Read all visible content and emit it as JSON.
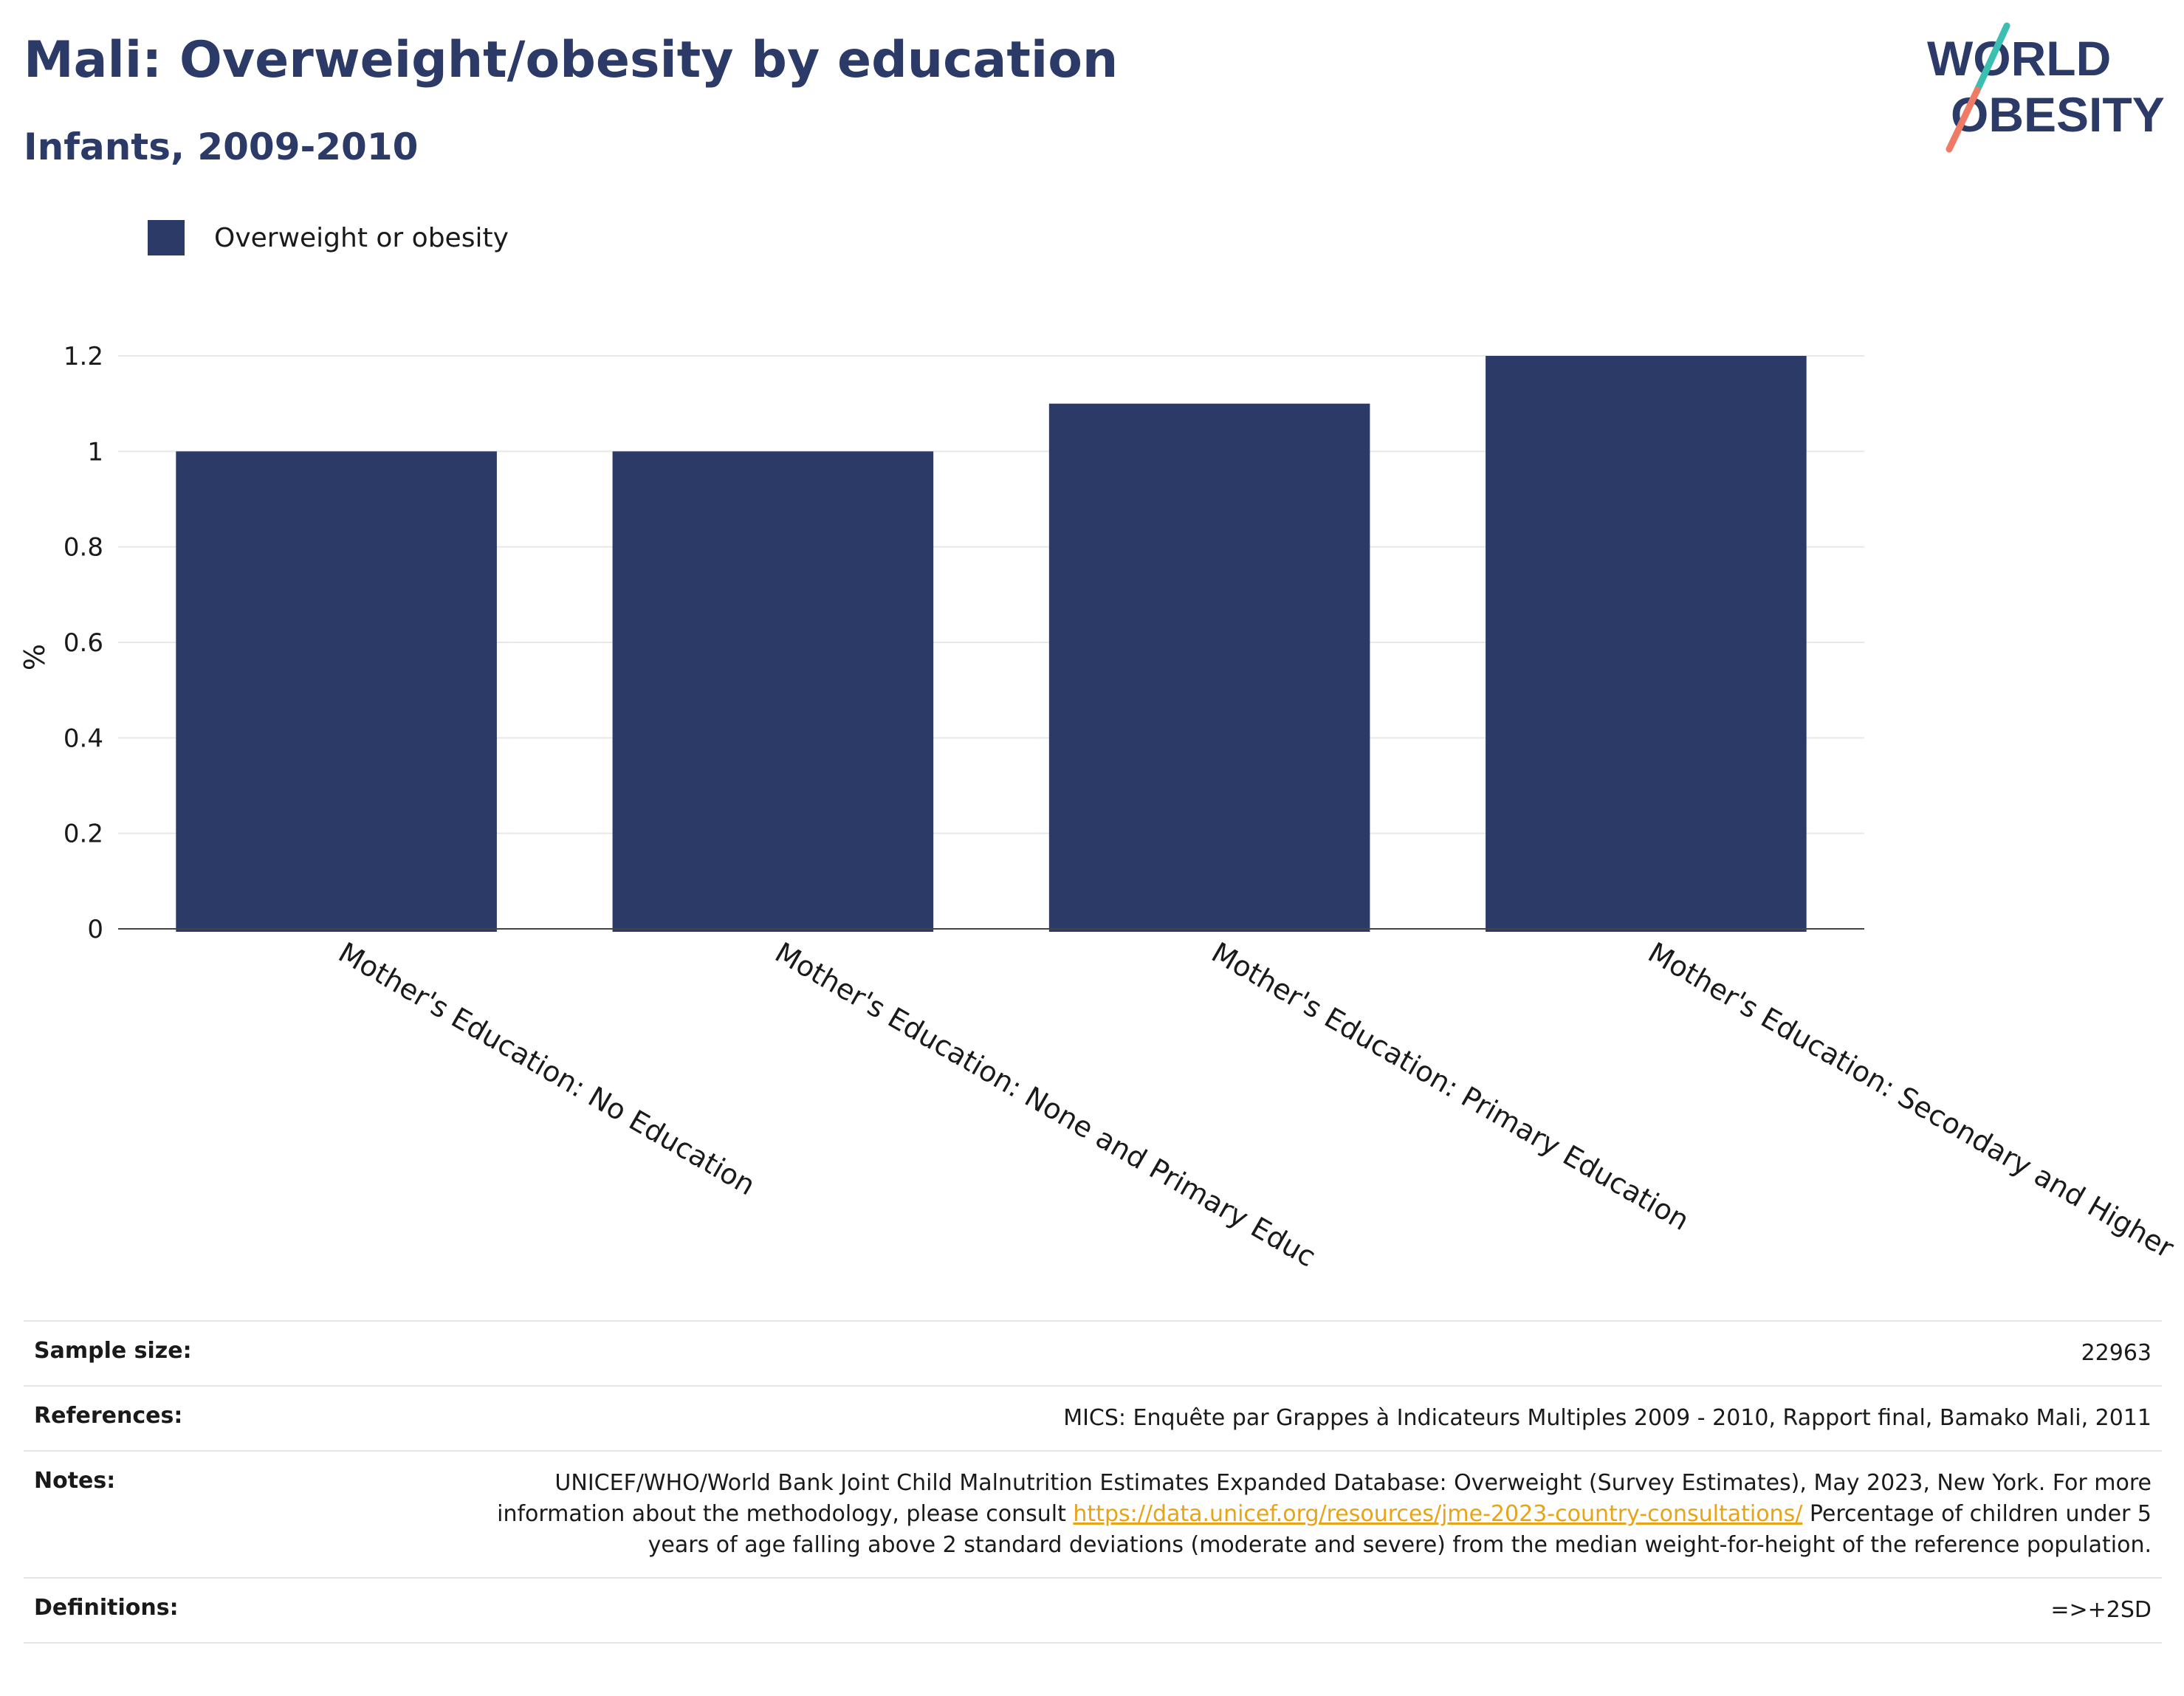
{
  "header": {
    "title": "Mali: Overweight/obesity by education",
    "subtitle": "Infants, 2009-2010"
  },
  "logo": {
    "line1": "WORLD",
    "line2": "OBESITY",
    "slash_colors": [
      "#3bbfb0",
      "#f07b64"
    ],
    "text_color": "#2b3a67"
  },
  "legend": {
    "label": "Overweight or obesity",
    "color": "#2b3a67"
  },
  "chart_data": {
    "type": "bar",
    "categories": [
      "Mother's Education: No Education",
      "Mother's Education: None and Primary Educ",
      "Mother's Education: Primary Education",
      "Mother's Education: Secondary and Higher"
    ],
    "series": [
      {
        "name": "Overweight or obesity",
        "values": [
          1.0,
          1.0,
          1.1,
          1.2
        ],
        "color": "#2b3a67"
      }
    ],
    "ylabel": "%",
    "ylim": [
      0,
      1.2
    ],
    "yticks": [
      0,
      0.2,
      0.4,
      0.6,
      0.8,
      1,
      1.2
    ],
    "ytick_labels": [
      "0",
      "0.2",
      "0.4",
      "0.6",
      "0.8",
      "1",
      "1.2"
    ],
    "grid": true,
    "legend_position": "top-left"
  },
  "info": {
    "sample_size": {
      "label": "Sample size:",
      "value": "22963"
    },
    "references": {
      "label": "References:",
      "value": "MICS: Enquête par Grappes à Indicateurs Multiples 2009 - 2010, Rapport final, Bamako Mali, 2011"
    },
    "notes": {
      "label": "Notes:",
      "text_before": "UNICEF/WHO/World Bank Joint Child Malnutrition Estimates Expanded Database: Overweight (Survey Estimates), May 2023, New York. For more information about the methodology, please consult ",
      "link": "https://data.unicef.org/resources/jme-2023-country-consultations/",
      "text_after": " Percentage of children under 5 years of age falling above 2 standard deviations (moderate and severe) from the median weight-for-height of the reference population."
    },
    "definitions": {
      "label": "Definitions:",
      "value": "=>+2SD"
    }
  }
}
